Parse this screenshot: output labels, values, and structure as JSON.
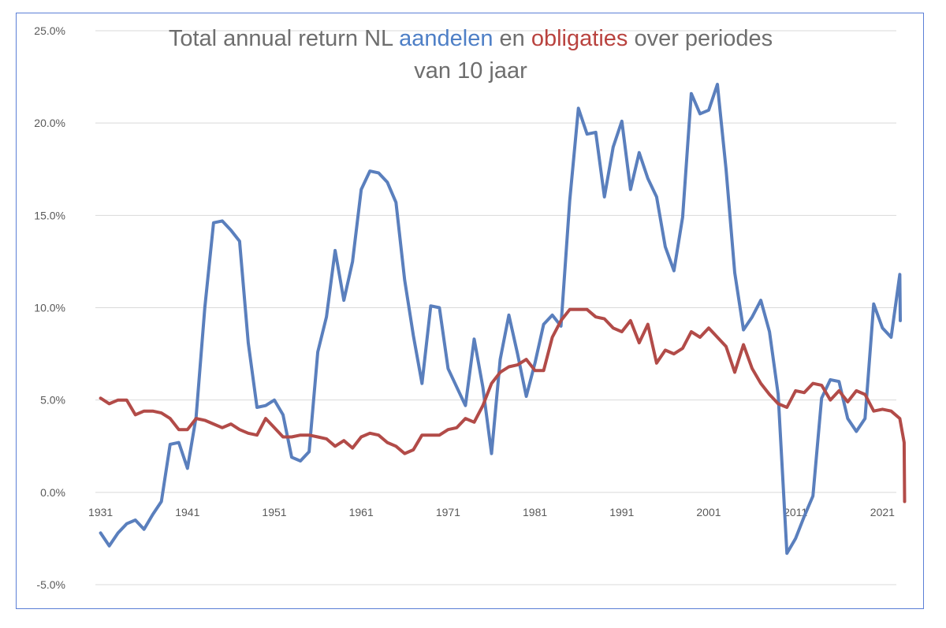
{
  "chart_data": {
    "type": "line",
    "title": {
      "line1_parts": [
        "Total annual return NL ",
        "aandelen",
        " en ",
        "obligaties",
        " over periodes"
      ],
      "line2": "van 10 jaar"
    },
    "colors": {
      "aandelen": "#5a7fbd",
      "obligaties": "#b24b48",
      "title_aandelen": "#4e7fc6",
      "title_obligaties": "#b9433f",
      "title_text": "#6e6e6e",
      "grid": "#d9d9d9",
      "frame": "#5b7fd6"
    },
    "ylim": [
      -0.05,
      0.25
    ],
    "yticks": [
      0.25,
      0.2,
      0.15,
      0.1,
      0.05,
      0.0,
      -0.05
    ],
    "ytick_labels": [
      "25.0%",
      "20.0%",
      "15.0%",
      "10.0%",
      "5.0%",
      "0.0%",
      "-5.0%"
    ],
    "xlim": [
      1930.4,
      2022.6
    ],
    "xticks": [
      1931,
      1941,
      1951,
      1961,
      1971,
      1981,
      1991,
      2001,
      2011,
      2021
    ],
    "xtick_labels": [
      "1931",
      "1941",
      "1951",
      "1961",
      "1971",
      "1981",
      "1991",
      "2001",
      "2011",
      "2021"
    ],
    "grid": true,
    "legend": "none",
    "series": [
      {
        "name": "aandelen",
        "points": [
          [
            1931,
            -0.022
          ],
          [
            1932,
            -0.029
          ],
          [
            1933,
            -0.022
          ],
          [
            1934,
            -0.017
          ],
          [
            1935,
            -0.015
          ],
          [
            1936,
            -0.02
          ],
          [
            1937,
            -0.012
          ],
          [
            1938,
            -0.005
          ],
          [
            1939,
            0.026
          ],
          [
            1940,
            0.027
          ],
          [
            1941,
            0.013
          ],
          [
            1942,
            0.041
          ],
          [
            1943,
            0.1
          ],
          [
            1944,
            0.146
          ],
          [
            1945,
            0.147
          ],
          [
            1946,
            0.142
          ],
          [
            1947,
            0.136
          ],
          [
            1948,
            0.081
          ],
          [
            1949,
            0.046
          ],
          [
            1950,
            0.047
          ],
          [
            1951,
            0.05
          ],
          [
            1952,
            0.042
          ],
          [
            1953,
            0.019
          ],
          [
            1954,
            0.017
          ],
          [
            1955,
            0.022
          ],
          [
            1956,
            0.076
          ],
          [
            1957,
            0.095
          ],
          [
            1958,
            0.131
          ],
          [
            1959,
            0.104
          ],
          [
            1960,
            0.125
          ],
          [
            1961,
            0.164
          ],
          [
            1962,
            0.174
          ],
          [
            1963,
            0.173
          ],
          [
            1964,
            0.168
          ],
          [
            1965,
            0.157
          ],
          [
            1966,
            0.115
          ],
          [
            1967,
            0.085
          ],
          [
            1968,
            0.059
          ],
          [
            1969,
            0.101
          ],
          [
            1970,
            0.1
          ],
          [
            1971,
            0.067
          ],
          [
            1972,
            0.057
          ],
          [
            1973,
            0.047
          ],
          [
            1974,
            0.083
          ],
          [
            1975,
            0.057
          ],
          [
            1976,
            0.021
          ],
          [
            1977,
            0.072
          ],
          [
            1978,
            0.096
          ],
          [
            1979,
            0.075
          ],
          [
            1980,
            0.052
          ],
          [
            1981,
            0.07
          ],
          [
            1982,
            0.091
          ],
          [
            1983,
            0.096
          ],
          [
            1984,
            0.09
          ],
          [
            1985,
            0.158
          ],
          [
            1986,
            0.208
          ],
          [
            1987,
            0.194
          ],
          [
            1988,
            0.195
          ],
          [
            1989,
            0.16
          ],
          [
            1990,
            0.187
          ],
          [
            1991,
            0.201
          ],
          [
            1992,
            0.164
          ],
          [
            1993,
            0.184
          ],
          [
            1994,
            0.17
          ],
          [
            1995,
            0.16
          ],
          [
            1996,
            0.133
          ],
          [
            1997,
            0.12
          ],
          [
            1998,
            0.149
          ],
          [
            1999,
            0.216
          ],
          [
            2000,
            0.205
          ],
          [
            2001,
            0.207
          ],
          [
            2002,
            0.221
          ],
          [
            2003,
            0.175
          ],
          [
            2004,
            0.119
          ],
          [
            2005,
            0.088
          ],
          [
            2006,
            0.095
          ],
          [
            2007,
            0.104
          ],
          [
            2008,
            0.087
          ],
          [
            2009,
            0.053
          ],
          [
            2010,
            -0.033
          ],
          [
            2011,
            -0.025
          ],
          [
            2012,
            -0.013
          ],
          [
            2013,
            -0.002
          ],
          [
            2014,
            0.051
          ],
          [
            2015,
            0.061
          ],
          [
            2016,
            0.06
          ],
          [
            2017,
            0.04
          ],
          [
            2018,
            0.033
          ],
          [
            2019,
            0.04
          ],
          [
            2020,
            0.102
          ],
          [
            2021,
            0.089
          ],
          [
            2022,
            0.084
          ],
          [
            2023,
            0.118
          ],
          [
            2023.05,
            0.093
          ]
        ]
      },
      {
        "name": "obligaties",
        "points": [
          [
            1931,
            0.051
          ],
          [
            1932,
            0.048
          ],
          [
            1933,
            0.05
          ],
          [
            1934,
            0.05
          ],
          [
            1935,
            0.042
          ],
          [
            1936,
            0.044
          ],
          [
            1937,
            0.044
          ],
          [
            1938,
            0.043
          ],
          [
            1939,
            0.04
          ],
          [
            1940,
            0.034
          ],
          [
            1941,
            0.034
          ],
          [
            1942,
            0.04
          ],
          [
            1943,
            0.039
          ],
          [
            1944,
            0.037
          ],
          [
            1945,
            0.035
          ],
          [
            1946,
            0.037
          ],
          [
            1947,
            0.034
          ],
          [
            1948,
            0.032
          ],
          [
            1949,
            0.031
          ],
          [
            1950,
            0.04
          ],
          [
            1951,
            0.035
          ],
          [
            1952,
            0.03
          ],
          [
            1953,
            0.03
          ],
          [
            1954,
            0.031
          ],
          [
            1955,
            0.031
          ],
          [
            1956,
            0.03
          ],
          [
            1957,
            0.029
          ],
          [
            1958,
            0.025
          ],
          [
            1959,
            0.028
          ],
          [
            1960,
            0.024
          ],
          [
            1961,
            0.03
          ],
          [
            1962,
            0.032
          ],
          [
            1963,
            0.031
          ],
          [
            1964,
            0.027
          ],
          [
            1965,
            0.025
          ],
          [
            1966,
            0.021
          ],
          [
            1967,
            0.023
          ],
          [
            1968,
            0.031
          ],
          [
            1969,
            0.031
          ],
          [
            1970,
            0.031
          ],
          [
            1971,
            0.034
          ],
          [
            1972,
            0.035
          ],
          [
            1973,
            0.04
          ],
          [
            1974,
            0.038
          ],
          [
            1975,
            0.047
          ],
          [
            1976,
            0.059
          ],
          [
            1977,
            0.065
          ],
          [
            1978,
            0.068
          ],
          [
            1979,
            0.069
          ],
          [
            1980,
            0.072
          ],
          [
            1981,
            0.066
          ],
          [
            1982,
            0.066
          ],
          [
            1983,
            0.084
          ],
          [
            1984,
            0.093
          ],
          [
            1985,
            0.099
          ],
          [
            1986,
            0.099
          ],
          [
            1987,
            0.099
          ],
          [
            1988,
            0.095
          ],
          [
            1989,
            0.094
          ],
          [
            1990,
            0.089
          ],
          [
            1991,
            0.087
          ],
          [
            1992,
            0.093
          ],
          [
            1993,
            0.081
          ],
          [
            1994,
            0.091
          ],
          [
            1995,
            0.07
          ],
          [
            1996,
            0.077
          ],
          [
            1997,
            0.075
          ],
          [
            1998,
            0.078
          ],
          [
            1999,
            0.087
          ],
          [
            2000,
            0.084
          ],
          [
            2001,
            0.089
          ],
          [
            2002,
            0.084
          ],
          [
            2003,
            0.079
          ],
          [
            2004,
            0.065
          ],
          [
            2005,
            0.08
          ],
          [
            2006,
            0.067
          ],
          [
            2007,
            0.059
          ],
          [
            2008,
            0.053
          ],
          [
            2009,
            0.048
          ],
          [
            2010,
            0.046
          ],
          [
            2011,
            0.055
          ],
          [
            2012,
            0.054
          ],
          [
            2013,
            0.059
          ],
          [
            2014,
            0.058
          ],
          [
            2015,
            0.05
          ],
          [
            2016,
            0.055
          ],
          [
            2017,
            0.049
          ],
          [
            2018,
            0.055
          ],
          [
            2019,
            0.053
          ],
          [
            2020,
            0.044
          ],
          [
            2021,
            0.045
          ],
          [
            2022,
            0.044
          ],
          [
            2023,
            0.04
          ],
          [
            2023.5,
            0.027
          ],
          [
            2023.55,
            -0.005
          ]
        ]
      }
    ]
  }
}
